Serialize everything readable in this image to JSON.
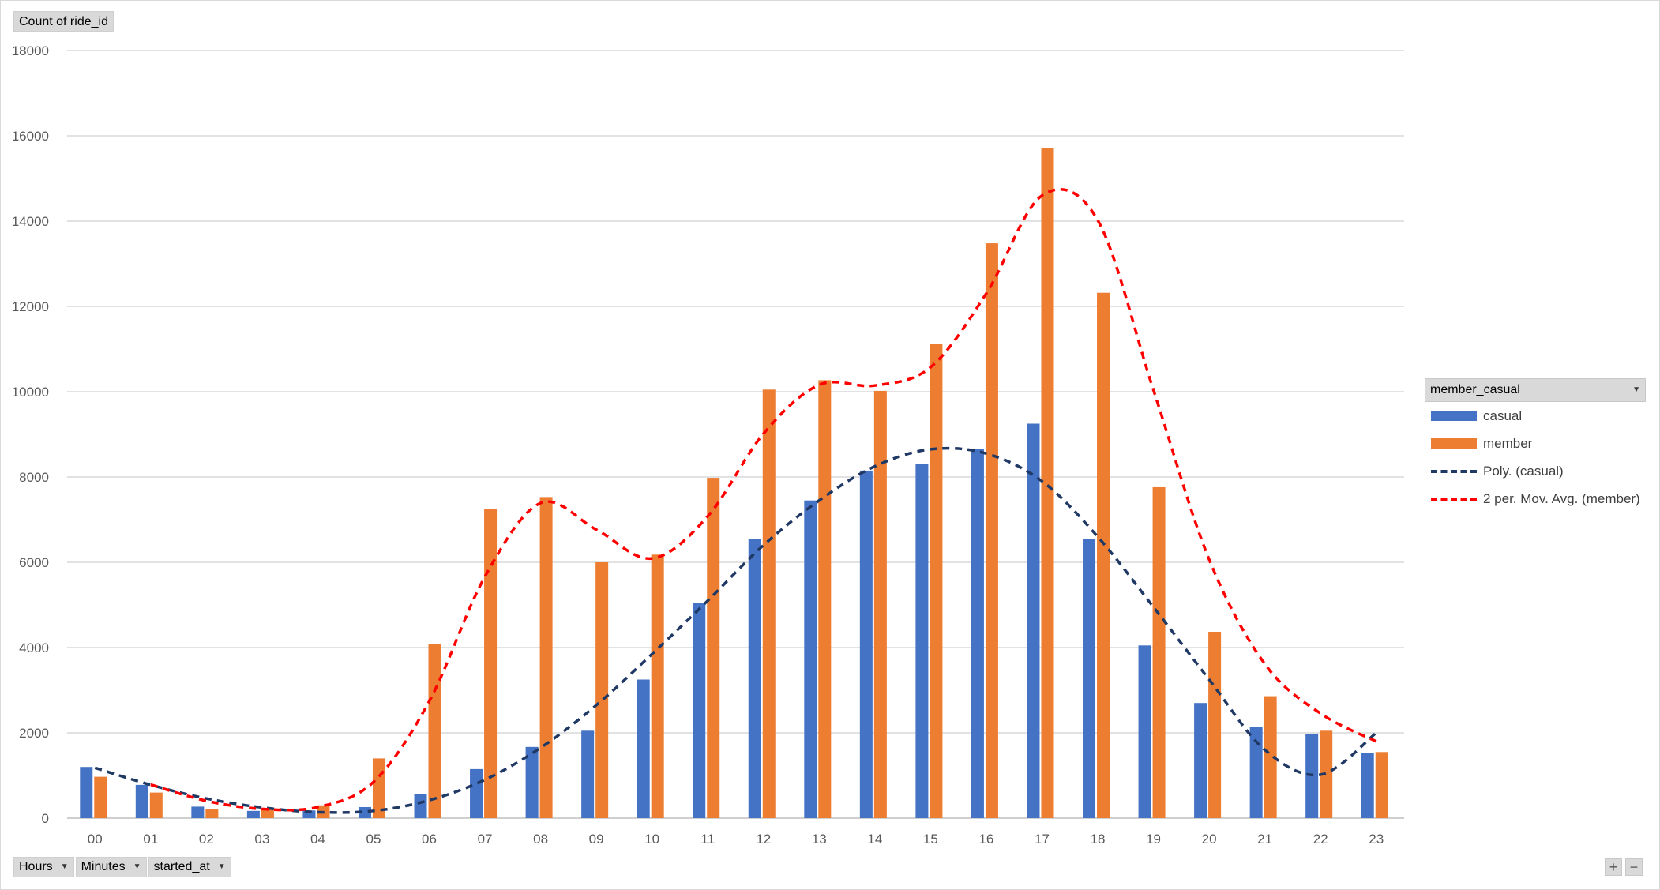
{
  "value_field": "Count of ride_id",
  "axis_fields": [
    {
      "label": "Hours"
    },
    {
      "label": "Minutes"
    },
    {
      "label": "started_at"
    }
  ],
  "legend": {
    "title": "member_casual",
    "entries": [
      {
        "label": "casual",
        "kind": "bar",
        "color": "#4472C4"
      },
      {
        "label": "member",
        "kind": "bar",
        "color": "#ED7D31"
      },
      {
        "label": "Poly. (casual)",
        "kind": "dashed-line",
        "color": "#1F3864"
      },
      {
        "label": "2 per. Mov. Avg. (member)",
        "kind": "dashed-line",
        "color": "#FF0000"
      }
    ]
  },
  "zoom": {
    "plus": "+",
    "minus": "−"
  },
  "chart_data": {
    "type": "bar",
    "categories": [
      "00",
      "01",
      "02",
      "03",
      "04",
      "05",
      "06",
      "07",
      "08",
      "09",
      "10",
      "11",
      "12",
      "13",
      "14",
      "15",
      "16",
      "17",
      "18",
      "19",
      "20",
      "21",
      "22",
      "23"
    ],
    "series": [
      {
        "name": "casual",
        "color": "#4472C4",
        "values": [
          1200,
          780,
          270,
          170,
          180,
          260,
          560,
          1150,
          1670,
          2050,
          3250,
          5050,
          6550,
          7450,
          8150,
          8300,
          8650,
          9250,
          6550,
          4050,
          2700,
          2130,
          1970,
          1520
        ]
      },
      {
        "name": "member",
        "color": "#ED7D31",
        "values": [
          970,
          600,
          210,
          220,
          300,
          1400,
          4080,
          7250,
          7530,
          6000,
          6180,
          7980,
          10050,
          10270,
          10020,
          11130,
          13480,
          15720,
          12320,
          7760,
          4370,
          2860,
          2050,
          1550
        ]
      }
    ],
    "trendlines": [
      {
        "name": "Poly. (casual)",
        "of": "casual",
        "type": "polynomial",
        "color": "#1F3864",
        "values": [
          1180,
          780,
          460,
          250,
          140,
          170,
          420,
          900,
          1650,
          2650,
          3850,
          5100,
          6400,
          7450,
          8250,
          8650,
          8550,
          7900,
          6600,
          4950,
          3250,
          1600,
          1020,
          2000
        ]
      },
      {
        "name": "2 per. Mov. Avg. (member)",
        "of": "member",
        "type": "moving-average",
        "color": "#FF0000",
        "start_index": 1,
        "values": [
          785,
          405,
          215,
          260,
          850,
          2740,
          5665,
          7390,
          6765,
          6090,
          7080,
          9015,
          10160,
          10145,
          10575,
          12305,
          14600,
          14020,
          10040,
          6065,
          3615,
          2455,
          1800
        ]
      }
    ],
    "ylim": [
      0,
      18000
    ],
    "yticks": [
      0,
      2000,
      4000,
      6000,
      8000,
      10000,
      12000,
      14000,
      16000,
      18000
    ],
    "grid": true,
    "legend_position": "right"
  }
}
